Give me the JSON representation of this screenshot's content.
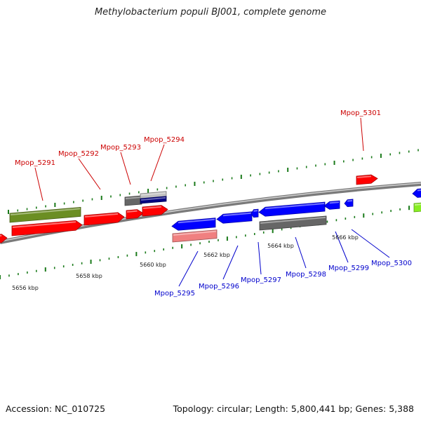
{
  "title": "Methylobacterium populi BJ001, complete genome",
  "footer": {
    "accession": "Accession: NC_010725",
    "summary": "Topology: circular; Length: 5,800,441 bp; Genes: 5,388"
  },
  "colors": {
    "forward_label": "#cc0000",
    "reverse_label": "#0000cc",
    "tick": "#1a7a1a",
    "backbone": "#8a8a8a",
    "gene_red": "#ff0000",
    "gene_blue": "#0000ff",
    "gene_olive": "#6b8e23",
    "gene_gray": "#666666",
    "gene_navy": "#000080",
    "gene_pink": "#f08080",
    "gene_lime": "#88ee22"
  },
  "kbp_labels": [
    "5656 kbp",
    "5658 kbp",
    "5660 kbp",
    "5662 kbp",
    "5664 kbp",
    "5666 kbp"
  ],
  "forward_genes": [
    "Mpop_5291",
    "Mpop_5292",
    "Mpop_5293",
    "Mpop_5294",
    "Mpop_5301"
  ],
  "reverse_genes": [
    "Mpop_5295",
    "Mpop_5296",
    "Mpop_5297",
    "Mpop_5298",
    "Mpop_5299",
    "Mpop_5300"
  ]
}
